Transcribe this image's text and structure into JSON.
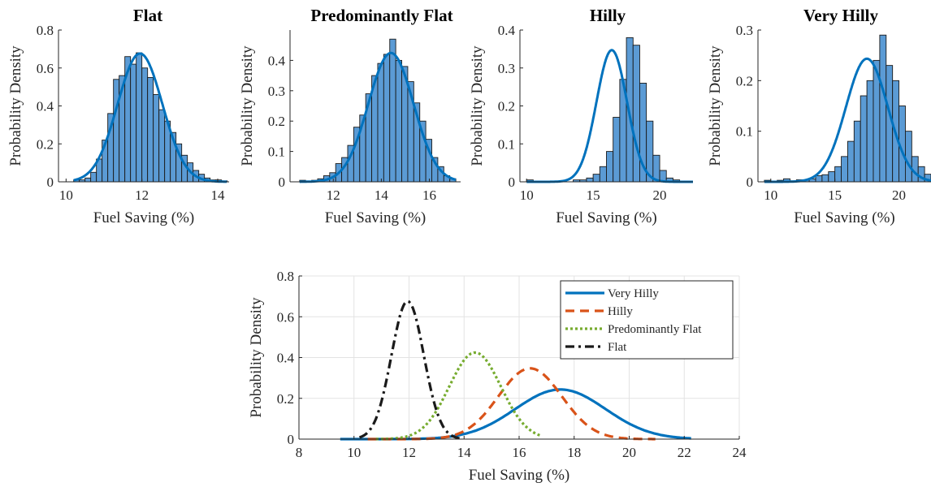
{
  "chart_data": [
    {
      "type": "bar",
      "title": "Flat",
      "xlabel": "Fuel Saving (%)",
      "ylabel": "Probability Density",
      "xlim": [
        9.8,
        14.3
      ],
      "ylim": [
        0,
        0.8
      ],
      "xticks": [
        "10",
        "12",
        "14"
      ],
      "xtick_values": [
        10,
        12,
        14
      ],
      "yticks": [
        "0",
        "0.2",
        "0.4",
        "0.6",
        "0.8"
      ],
      "ytick_values": [
        0,
        0.2,
        0.4,
        0.6,
        0.8
      ],
      "bins": {
        "start": 10.2,
        "width": 0.15,
        "values": [
          0.01,
          0.01,
          0.02,
          0.05,
          0.12,
          0.22,
          0.36,
          0.54,
          0.56,
          0.66,
          0.62,
          0.68,
          0.6,
          0.55,
          0.46,
          0.38,
          0.32,
          0.26,
          0.2,
          0.14,
          0.1,
          0.06,
          0.04,
          0.02,
          0.01,
          0.01,
          0.005
        ]
      },
      "fit": {
        "mean": 11.95,
        "sd": 0.59
      },
      "bar_color": "#5b9bd5",
      "line_color": "#0072bd"
    },
    {
      "type": "bar",
      "title": "Predominantly Flat",
      "xlabel": "Fuel Saving (%)",
      "ylabel": "Probability Density",
      "xlim": [
        10.2,
        17.3
      ],
      "ylim": [
        0,
        0.5
      ],
      "xticks": [
        "12",
        "14",
        "16"
      ],
      "xtick_values": [
        12,
        14,
        16
      ],
      "yticks": [
        "0",
        "0.1",
        "0.2",
        "0.3",
        "0.4"
      ],
      "ytick_values": [
        0,
        0.1,
        0.2,
        0.3,
        0.4
      ],
      "bins": {
        "start": 10.6,
        "width": 0.25,
        "values": [
          0.005,
          0.0,
          0.005,
          0.01,
          0.02,
          0.03,
          0.06,
          0.08,
          0.12,
          0.18,
          0.22,
          0.29,
          0.35,
          0.39,
          0.42,
          0.47,
          0.4,
          0.38,
          0.33,
          0.26,
          0.2,
          0.14,
          0.08,
          0.05,
          0.02,
          0.01
        ]
      },
      "fit": {
        "mean": 14.4,
        "sd": 0.94
      },
      "bar_color": "#5b9bd5",
      "line_color": "#0072bd"
    },
    {
      "type": "bar",
      "title": "Hilly",
      "xlabel": "Fuel Saving (%)",
      "ylabel": "Probability Density",
      "xlim": [
        9.5,
        22.5
      ],
      "ylim": [
        0,
        0.4
      ],
      "xticks": [
        "10",
        "15",
        "20"
      ],
      "xtick_values": [
        10,
        15,
        20
      ],
      "yticks": [
        "0",
        "0.1",
        "0.2",
        "0.3",
        "0.4"
      ],
      "ytick_values": [
        0,
        0.1,
        0.2,
        0.3,
        0.4
      ],
      "bins": {
        "start": 10.0,
        "width": 0.5,
        "values": [
          0.005,
          0.0,
          0.0,
          0.0,
          0.0,
          0.0,
          0.0,
          0.005,
          0.005,
          0.01,
          0.02,
          0.04,
          0.08,
          0.17,
          0.27,
          0.38,
          0.36,
          0.26,
          0.16,
          0.07,
          0.03,
          0.01,
          0.005,
          0.0,
          0.0
        ]
      },
      "fit": {
        "mean": 16.4,
        "sd": 1.15
      },
      "bar_color": "#5b9bd5",
      "line_color": "#0072bd"
    },
    {
      "type": "bar",
      "title": "Very Hilly",
      "xlabel": "Fuel Saving (%)",
      "ylabel": "Probability Density",
      "xlim": [
        9.0,
        22.5
      ],
      "ylim": [
        0,
        0.3
      ],
      "xticks": [
        "10",
        "15",
        "20"
      ],
      "xtick_values": [
        10,
        15,
        20
      ],
      "yticks": [
        "0",
        "0.1",
        "0.2",
        "0.3"
      ],
      "ytick_values": [
        0,
        0.1,
        0.2,
        0.3
      ],
      "bins": {
        "start": 9.5,
        "width": 0.5,
        "values": [
          0.003,
          0.0,
          0.003,
          0.006,
          0.002,
          0.004,
          0.004,
          0.006,
          0.012,
          0.014,
          0.02,
          0.03,
          0.05,
          0.08,
          0.12,
          0.17,
          0.2,
          0.24,
          0.29,
          0.23,
          0.2,
          0.15,
          0.1,
          0.05,
          0.03,
          0.015,
          0.01
        ]
      },
      "fit": {
        "mean": 17.5,
        "sd": 1.64
      },
      "bar_color": "#5b9bd5",
      "line_color": "#0072bd"
    },
    {
      "type": "line",
      "title": "",
      "xlabel": "Fuel Saving (%)",
      "ylabel": "Probability Density",
      "xlim": [
        8,
        24
      ],
      "ylim": [
        0,
        0.8
      ],
      "grid": true,
      "legend_position": "top-right",
      "xticks": [
        "8",
        "10",
        "12",
        "14",
        "16",
        "18",
        "20",
        "22",
        "24"
      ],
      "xtick_values": [
        8,
        10,
        12,
        14,
        16,
        18,
        20,
        22,
        24
      ],
      "yticks": [
        "0",
        "0.2",
        "0.4",
        "0.6",
        "0.8"
      ],
      "ytick_values": [
        0,
        0.2,
        0.4,
        0.6,
        0.8
      ],
      "series": [
        {
          "name": "Very Hilly",
          "mean": 17.5,
          "sd": 1.64,
          "x_range": [
            9.5,
            22.3
          ],
          "color": "#0072bd",
          "style": "solid"
        },
        {
          "name": "Hilly",
          "mean": 16.4,
          "sd": 1.15,
          "x_range": [
            10.5,
            21.0
          ],
          "color": "#d95319",
          "style": "dashed"
        },
        {
          "name": "Predominantly Flat",
          "mean": 14.4,
          "sd": 0.94,
          "x_range": [
            10.8,
            16.8
          ],
          "color": "#77ac30",
          "style": "dotted"
        },
        {
          "name": "Flat",
          "mean": 11.95,
          "sd": 0.59,
          "x_range": [
            10.2,
            14.0
          ],
          "color": "#1a1a1a",
          "style": "dashdot"
        }
      ]
    }
  ]
}
